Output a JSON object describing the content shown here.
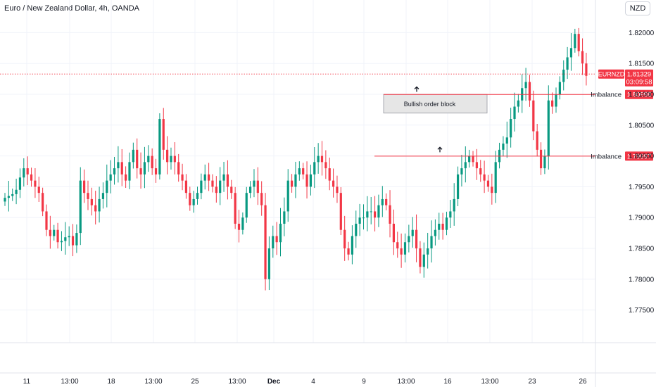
{
  "header": {
    "title": "Euro / New Zealand Dollar, 4h, OANDA",
    "currency_button": "NZD"
  },
  "colors": {
    "up": "#089981",
    "down": "#f23645",
    "grid": "#f0f3fa",
    "price_line": "#f23645",
    "box_fill": "#e6e6e6",
    "box_border": "#9598a1"
  },
  "chart_data": {
    "type": "candlestick",
    "symbol": "EURNZD",
    "y_ticks": [
      "1.82000",
      "1.81500",
      "1.81000",
      "1.80500",
      "1.80000",
      "1.79500",
      "1.79000",
      "1.78500",
      "1.78000",
      "1.77500"
    ],
    "y_tick_values": [
      1.82,
      1.815,
      1.81,
      1.805,
      1.8,
      1.795,
      1.79,
      1.785,
      1.78,
      1.775
    ],
    "ylim": [
      1.7697,
      1.8253
    ],
    "x_ticks": [
      "11",
      "13:00",
      "18",
      "13:00",
      "25",
      "13:00",
      "Dec",
      "4",
      "9",
      "13:00",
      "16",
      "13:00",
      "23",
      "26"
    ],
    "current_price": {
      "symbol": "EURNZD",
      "value": 1.81329,
      "label": "1.81329",
      "countdown": "03:09:58"
    },
    "imbalance_levels": [
      {
        "label": "Imbalance",
        "value": 1.80998,
        "value_label": "1.80998"
      },
      {
        "label": "Imbalance",
        "value": 1.79997,
        "value_label": "1.79997"
      }
    ],
    "order_block": {
      "label": "Bullish order block",
      "top": 1.80998,
      "bottom": 1.80695
    },
    "closes": [
      1.7932,
      1.7935,
      1.7938,
      1.7945,
      1.7965,
      1.798,
      1.797,
      1.796,
      1.795,
      1.794,
      1.791,
      1.788,
      1.787,
      1.788,
      1.786,
      1.7862,
      1.7868,
      1.787,
      1.7855,
      1.7875,
      1.796,
      1.794,
      1.793,
      1.792,
      1.791,
      1.793,
      1.794,
      1.796,
      1.797,
      1.798,
      1.799,
      1.797,
      1.796,
      1.799,
      1.801,
      1.798,
      1.797,
      1.799,
      1.8,
      1.798,
      1.797,
      1.806,
      1.801,
      1.799,
      1.8,
      1.799,
      1.797,
      1.796,
      1.794,
      1.792,
      1.793,
      1.794,
      1.796,
      1.797,
      1.796,
      1.795,
      1.794,
      1.796,
      1.797,
      1.795,
      1.794,
      1.789,
      1.788,
      1.79,
      1.794,
      1.795,
      1.796,
      1.794,
      1.792,
      1.78,
      1.785,
      1.787,
      1.786,
      1.789,
      1.791,
      1.796,
      1.795,
      1.797,
      1.798,
      1.797,
      1.795,
      1.797,
      1.799,
      1.8,
      1.799,
      1.798,
      1.796,
      1.795,
      1.794,
      1.788,
      1.785,
      1.784,
      1.787,
      1.789,
      1.79,
      1.79,
      1.791,
      1.791,
      1.79,
      1.792,
      1.793,
      1.792,
      1.789,
      1.786,
      1.785,
      1.784,
      1.786,
      1.787,
      1.788,
      1.785,
      1.782,
      1.784,
      1.785,
      1.787,
      1.788,
      1.789,
      1.788,
      1.79,
      1.791,
      1.793,
      1.797,
      1.798,
      1.799,
      1.8,
      1.799,
      1.798,
      1.797,
      1.796,
      1.795,
      1.794,
      1.799,
      1.801,
      1.802,
      1.803,
      1.806,
      1.808,
      1.809,
      1.811,
      1.812,
      1.809,
      1.804,
      1.801,
      1.798,
      1.8,
      1.809,
      1.808,
      1.81,
      1.812,
      1.814,
      1.816,
      1.8175,
      1.8198,
      1.817,
      1.815,
      1.813
    ],
    "bar_range": 157
  }
}
